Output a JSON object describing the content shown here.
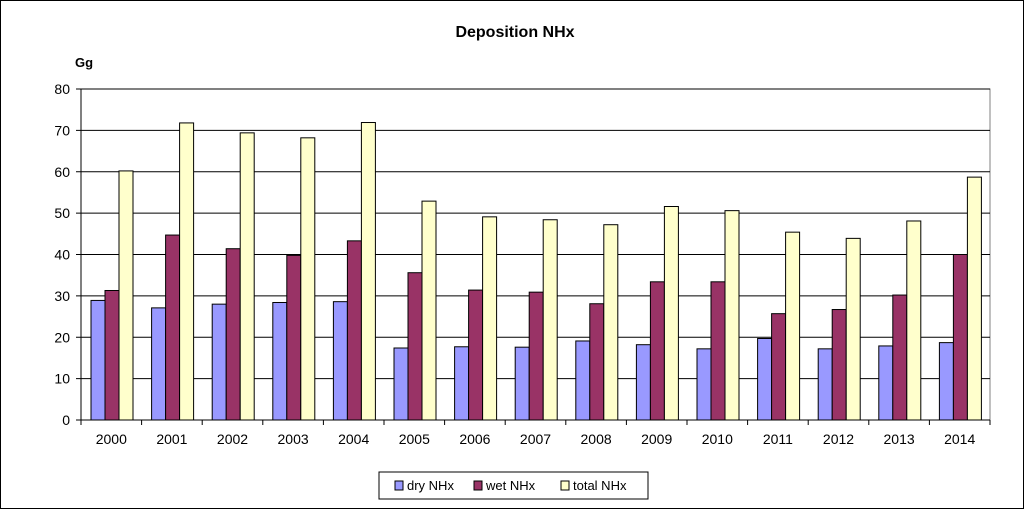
{
  "chart_data": {
    "type": "bar",
    "title": "Deposition NHx",
    "ylabel": "Gg",
    "xlabel": "",
    "ylim": [
      0,
      80
    ],
    "yticks": [
      0,
      10,
      20,
      30,
      40,
      50,
      60,
      70,
      80
    ],
    "grid": true,
    "legend_position": "bottom",
    "categories": [
      "2000",
      "2001",
      "2002",
      "2003",
      "2004",
      "2005",
      "2006",
      "2007",
      "2008",
      "2009",
      "2010",
      "2011",
      "2012",
      "2013",
      "2014"
    ],
    "series": [
      {
        "name": "dry NHx",
        "color": "#9999ff",
        "values": [
          28.9,
          27.1,
          28.0,
          28.4,
          28.6,
          17.4,
          17.7,
          17.6,
          19.1,
          18.2,
          17.2,
          19.7,
          17.2,
          17.9,
          18.7
        ]
      },
      {
        "name": "wet NHx",
        "color": "#993366",
        "values": [
          31.3,
          44.7,
          41.4,
          39.8,
          43.3,
          35.6,
          31.4,
          30.9,
          28.1,
          33.4,
          33.4,
          25.7,
          26.7,
          30.2,
          40.0
        ]
      },
      {
        "name": "total NHx",
        "color": "#ffffcc",
        "values": [
          60.2,
          71.8,
          69.4,
          68.2,
          71.9,
          52.9,
          49.1,
          48.4,
          47.2,
          51.6,
          50.6,
          45.4,
          43.9,
          48.1,
          58.7
        ]
      }
    ]
  }
}
